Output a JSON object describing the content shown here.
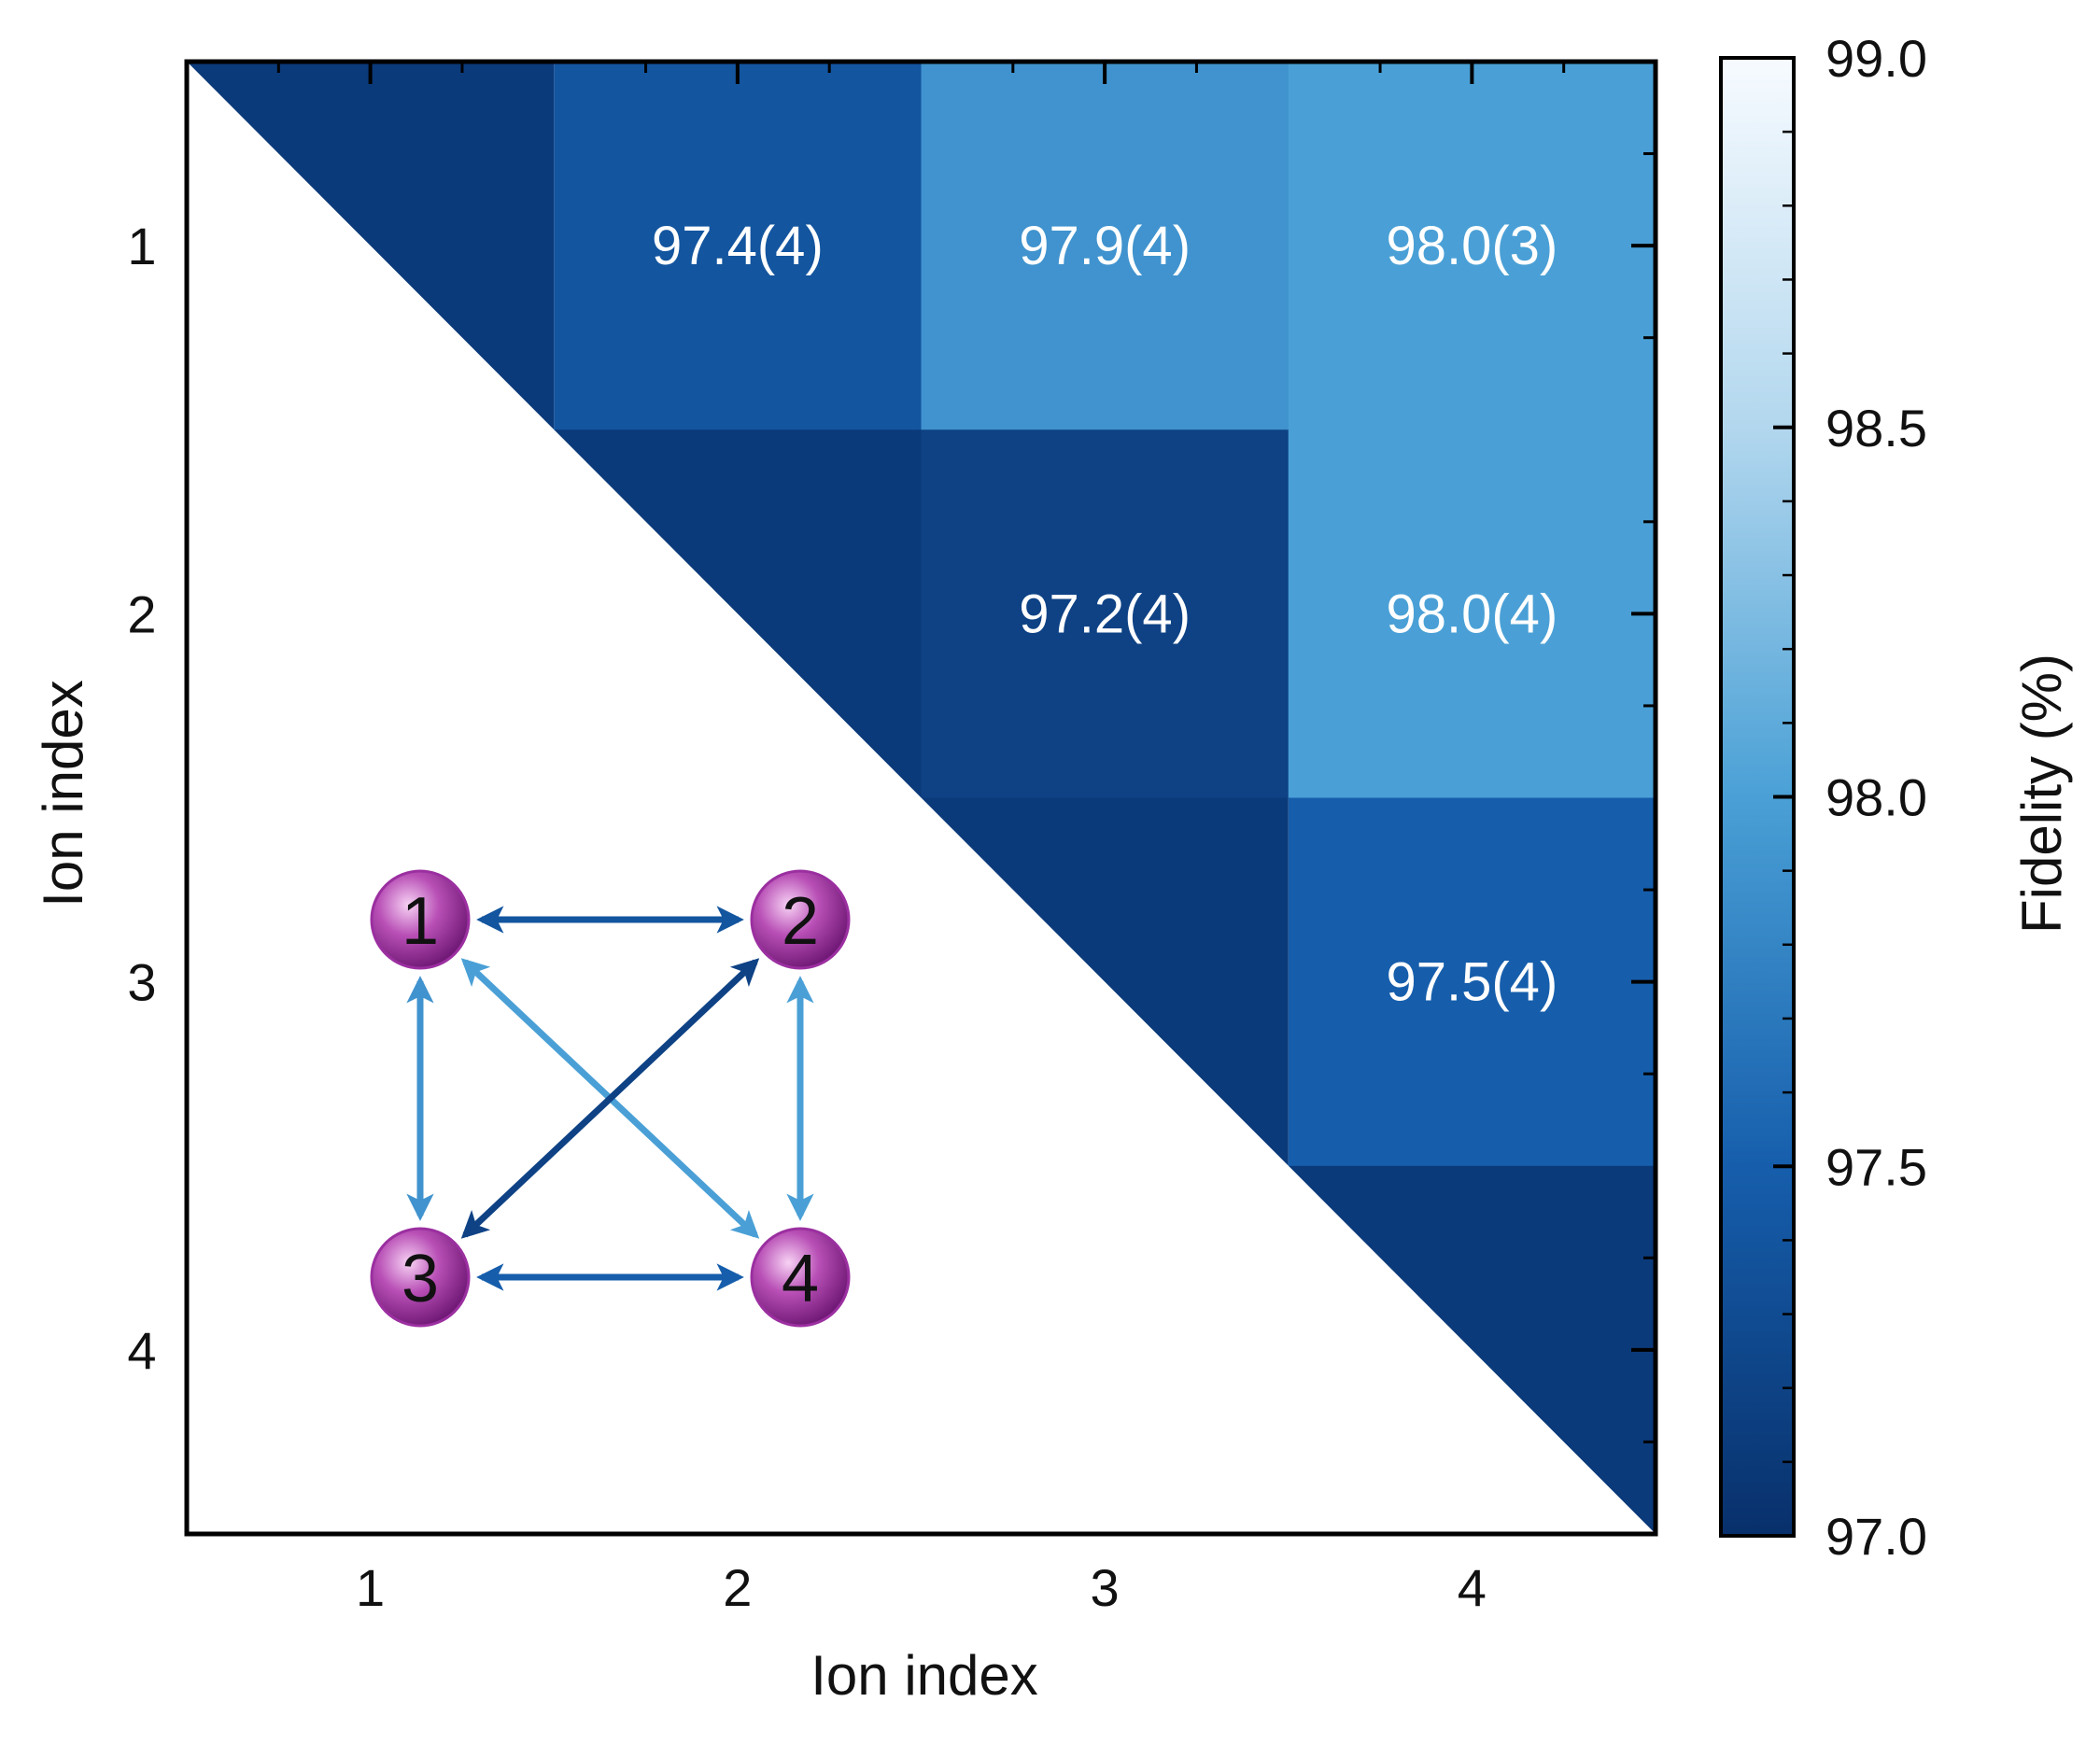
{
  "chart_data": {
    "type": "heatmap",
    "title": "",
    "xlabel": "Ion index",
    "ylabel": "Ion index",
    "x_categories": [
      "1",
      "2",
      "3",
      "4"
    ],
    "y_categories": [
      "1",
      "2",
      "3",
      "4"
    ],
    "cells": [
      {
        "row": "1",
        "col": "2",
        "value": 97.4,
        "label": "97.4(4)"
      },
      {
        "row": "1",
        "col": "3",
        "value": 97.9,
        "label": "97.9(4)"
      },
      {
        "row": "1",
        "col": "4",
        "value": 98.0,
        "label": "98.0(3)"
      },
      {
        "row": "2",
        "col": "3",
        "value": 97.2,
        "label": "97.2(4)"
      },
      {
        "row": "2",
        "col": "4",
        "value": 98.0,
        "label": "98.0(4)"
      },
      {
        "row": "3",
        "col": "4",
        "value": 97.5,
        "label": "97.5(4)"
      }
    ],
    "colorbar": {
      "label": "Fidelity (%)",
      "range": [
        97.0,
        99.0
      ],
      "ticks": [
        "97.0",
        "97.5",
        "98.0",
        "98.5",
        "99.0"
      ],
      "colors": {
        "low": "#08306b",
        "high": "#f7fbff"
      }
    },
    "diagonal_color": "#0b3a7a"
  },
  "inset": {
    "nodes": [
      "1",
      "2",
      "3",
      "4"
    ],
    "node_color": "#9b2fa0",
    "edges": [
      {
        "from": "1",
        "to": "2",
        "fidelity": 97.4
      },
      {
        "from": "1",
        "to": "3",
        "fidelity": 97.9
      },
      {
        "from": "1",
        "to": "4",
        "fidelity": 98.0
      },
      {
        "from": "2",
        "to": "3",
        "fidelity": 97.2
      },
      {
        "from": "2",
        "to": "4",
        "fidelity": 98.0
      },
      {
        "from": "3",
        "to": "4",
        "fidelity": 97.5
      }
    ]
  }
}
